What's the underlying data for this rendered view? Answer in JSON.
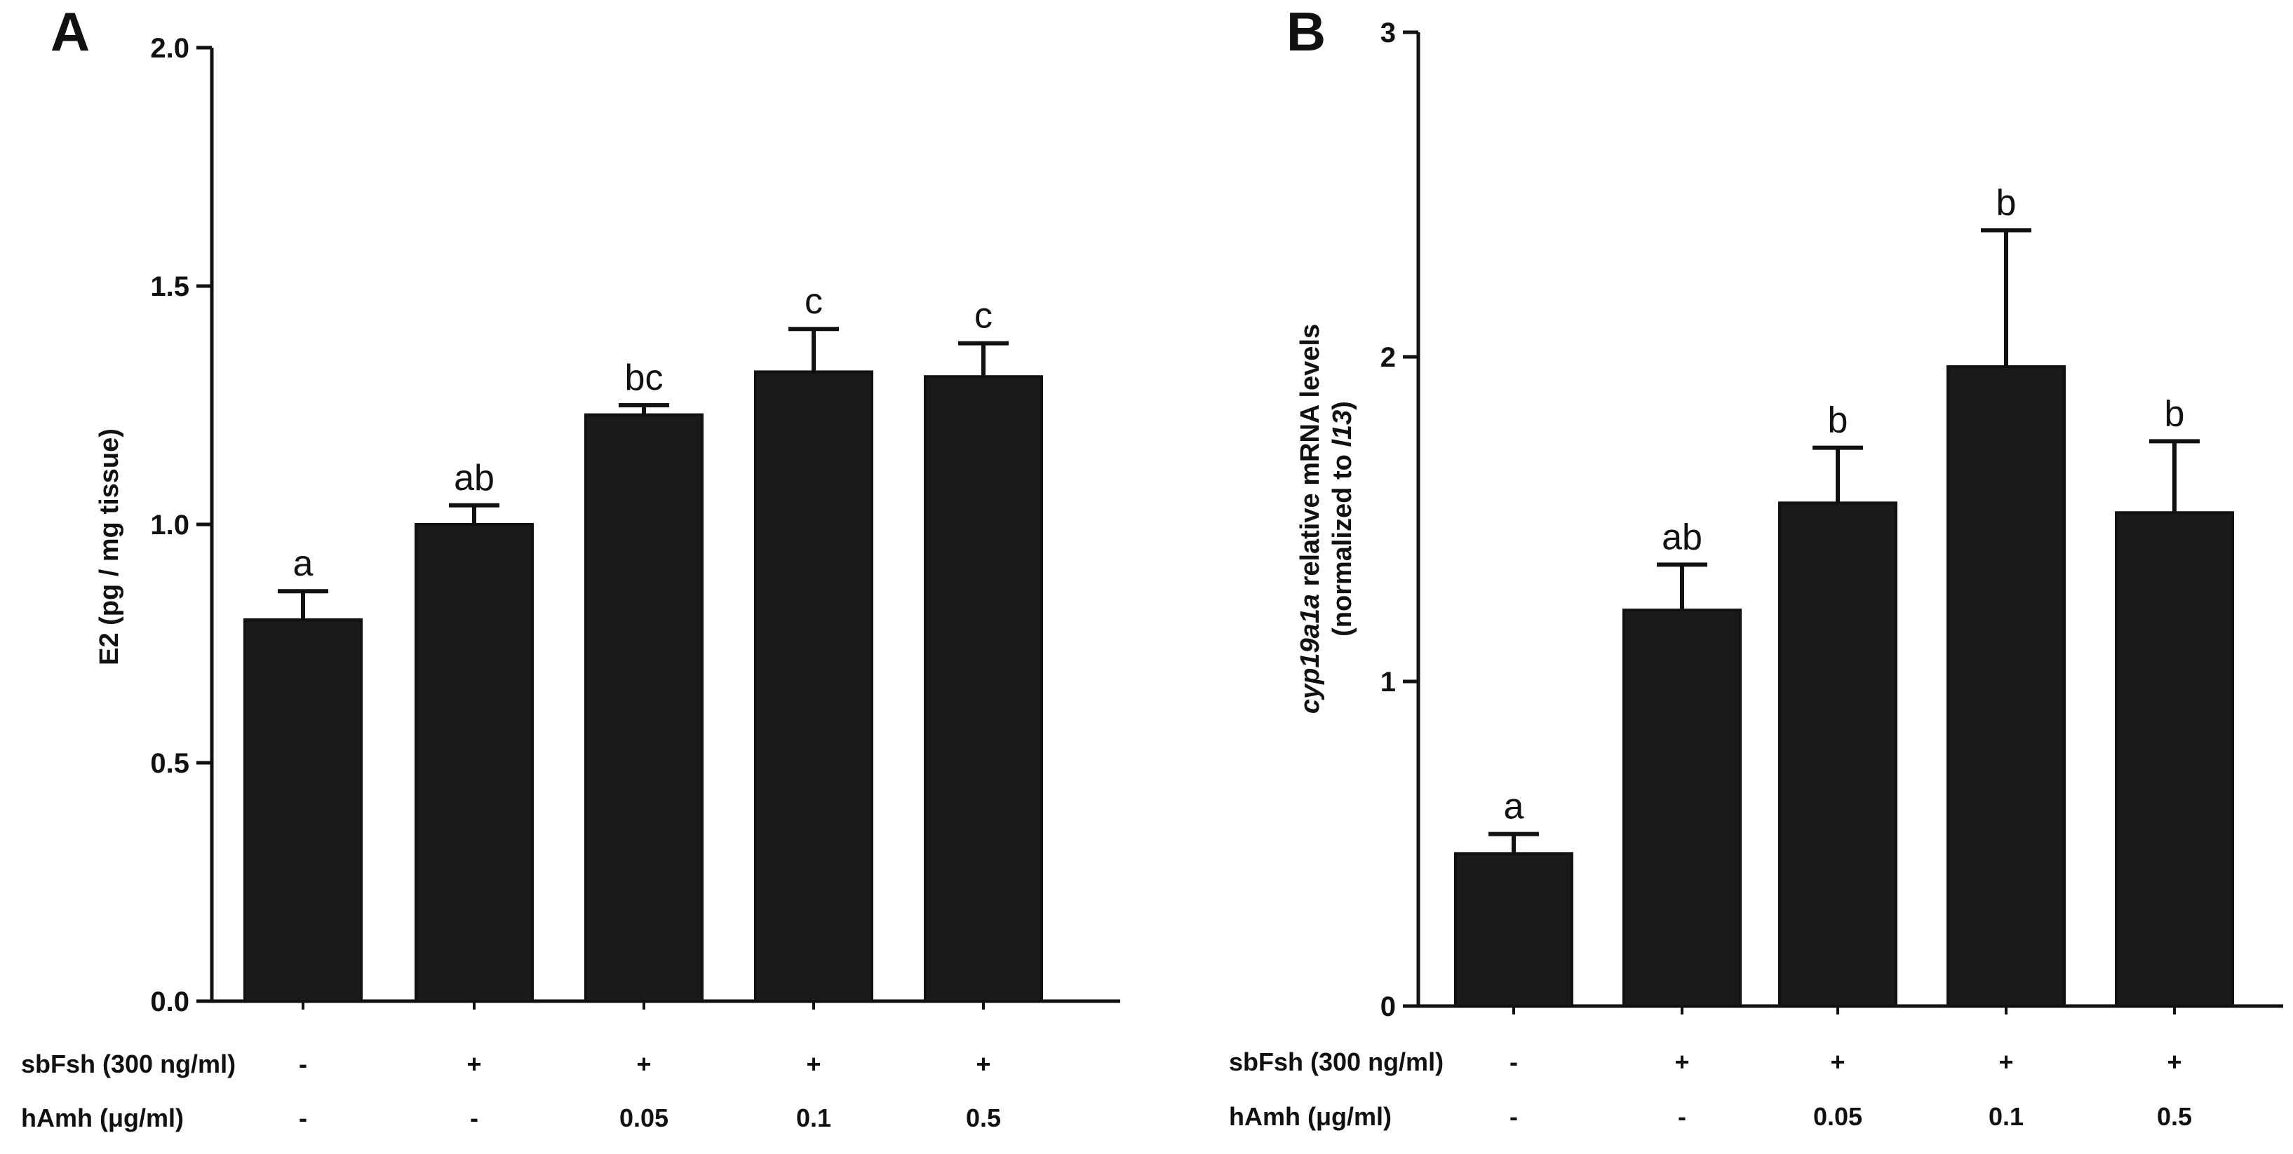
{
  "chart_data": [
    {
      "panel": "A",
      "type": "bar",
      "ylabel": "E2 (pg / mg tissue)",
      "ylim": [
        0,
        2.0
      ],
      "yticks": [
        0.0,
        0.5,
        1.0,
        1.5,
        2.0
      ],
      "ytick_labels": [
        "0.0",
        "0.5",
        "1.0",
        "1.5",
        "2.0"
      ],
      "values": [
        0.8,
        1.0,
        1.23,
        1.32,
        1.31
      ],
      "errors": [
        0.06,
        0.04,
        0.02,
        0.09,
        0.07
      ],
      "significance": [
        "a",
        "ab",
        "bc",
        "c",
        "c"
      ],
      "rows": [
        {
          "label": "sbFsh (300 ng/ml)",
          "values": [
            "-",
            "+",
            "+",
            "+",
            "+"
          ]
        },
        {
          "label": "hAmh (μg/ml)",
          "values": [
            "-",
            "-",
            "0.05",
            "0.1",
            "0.5"
          ]
        }
      ]
    },
    {
      "panel": "B",
      "type": "bar",
      "ylabel_parts": [
        {
          "text": "cyp19a1a",
          "italic": true
        },
        {
          "text": " relative mRNA levels",
          "italic": false
        }
      ],
      "ylabel_line2_parts": [
        {
          "text": "(normalized to ",
          "italic": false
        },
        {
          "text": "l13",
          "italic": true
        },
        {
          "text": ")",
          "italic": false
        }
      ],
      "ylim": [
        0,
        3
      ],
      "yticks": [
        0,
        1,
        2,
        3
      ],
      "ytick_labels": [
        "0",
        "1",
        "2",
        "3"
      ],
      "values": [
        0.47,
        1.22,
        1.55,
        1.97,
        1.52
      ],
      "errors": [
        0.06,
        0.14,
        0.17,
        0.42,
        0.22
      ],
      "significance": [
        "a",
        "ab",
        "b",
        "b",
        "b"
      ],
      "rows": [
        {
          "label": "sbFsh (300 ng/ml)",
          "values": [
            "-",
            "+",
            "+",
            "+",
            "+"
          ]
        },
        {
          "label": "hAmh (μg/ml)",
          "values": [
            "-",
            "-",
            "0.05",
            "0.1",
            "0.5"
          ]
        }
      ]
    }
  ]
}
